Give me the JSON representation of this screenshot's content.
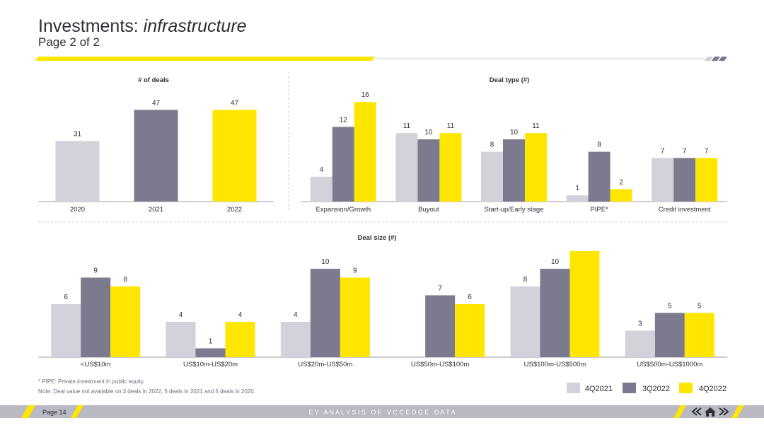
{
  "header": {
    "title_main": "Investments: ",
    "title_italic": "infrastructure",
    "subtitle": "Page 2 of 2"
  },
  "colors": {
    "q2021": "#d2d2da",
    "q3_2022": "#7b7a8e",
    "q4_2022": "#ffe600",
    "yellow_accent": "#ffe600",
    "text": "#2e2e38",
    "footer_bar": "#b9b9c3"
  },
  "chart_data": [
    {
      "id": "deals",
      "type": "bar",
      "title": "# of deals",
      "categories": [
        "2020",
        "2021",
        "2022"
      ],
      "values": [
        31,
        47,
        47
      ],
      "ylim": [
        0,
        60
      ]
    },
    {
      "id": "dealtype",
      "type": "bar",
      "title": "Deal type (#)",
      "categories": [
        "Expansion/Growth",
        "Buyout",
        "Start-up/Early stage",
        "PIPE*",
        "Credit investment"
      ],
      "series": [
        {
          "name": "4Q2021",
          "values": [
            4,
            11,
            8,
            1,
            7
          ]
        },
        {
          "name": "3Q2022",
          "values": [
            12,
            10,
            10,
            8,
            7
          ]
        },
        {
          "name": "4Q2022",
          "values": [
            16,
            11,
            11,
            2,
            7
          ]
        }
      ],
      "ylim": [
        0,
        20
      ]
    },
    {
      "id": "dealsize",
      "type": "bar",
      "title": "Deal size (#)",
      "categories": [
        "<US$10m",
        "US$10m-US$20m",
        "US$20m-US$50m",
        "US$50m-US$100m",
        "US$100m-US$500m",
        "US$500m-US$1000m"
      ],
      "series": [
        {
          "name": "4Q2021",
          "values": [
            6,
            4,
            4,
            null,
            8,
            3
          ]
        },
        {
          "name": "3Q2022",
          "values": [
            9,
            1,
            10,
            7,
            10,
            5
          ]
        },
        {
          "name": "4Q2022",
          "values": [
            8,
            4,
            9,
            6,
            12,
            5
          ]
        }
      ],
      "value_labels": [
        [
          "6",
          "4",
          "4",
          "",
          "8",
          "3"
        ],
        [
          "9",
          "1",
          "10",
          "7",
          "10",
          "5"
        ],
        [
          "8",
          "4",
          "9",
          "6",
          "",
          "5"
        ]
      ],
      "ylim": [
        0,
        12
      ]
    }
  ],
  "legend": [
    "4Q2021",
    "3Q2022",
    "4Q2022"
  ],
  "notes": {
    "pipe": "* PIPE: Private investment in public equity",
    "note": "Note: Deal value not available on 3 deals in 2022, 5 deals in 2021 and 5 deals in 2020."
  },
  "footer": {
    "page": "Page 14",
    "center": "E Y   A N A L Y S I S   O F   V C C E D G E   D A T A"
  },
  "icons": [
    "prev-icon",
    "home-icon",
    "next-icon"
  ]
}
